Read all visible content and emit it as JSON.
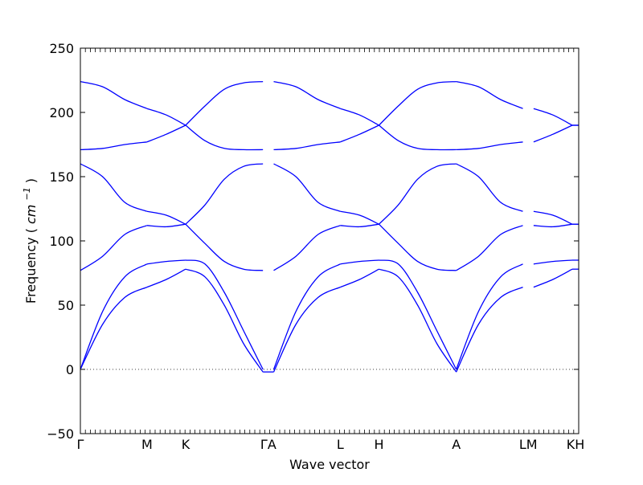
{
  "chart_data": {
    "type": "line",
    "title": "",
    "xlabel": "Wave vector",
    "ylabel": "Frequency",
    "ylabel_unit_base": "cm",
    "ylabel_unit_exponent": "−1",
    "ylim": [
      -50,
      250
    ],
    "yticks": [
      -50,
      0,
      50,
      100,
      150,
      200,
      250
    ],
    "ytick_labels": [
      "−50",
      "0",
      "50",
      "100",
      "150",
      "200",
      "250"
    ],
    "zero_line": "dotted",
    "grid": false,
    "legend": "none",
    "line_color": "#0000ff",
    "x_path_points": [
      {
        "label": "Γ",
        "x": 0.0
      },
      {
        "label": "M",
        "x": 0.62
      },
      {
        "label": "K",
        "x": 0.98
      },
      {
        "label": "Γ",
        "x": 1.7
      },
      {
        "label": "A",
        "x": 1.8
      },
      {
        "label": "L",
        "x": 2.42
      },
      {
        "label": "H",
        "x": 2.78
      },
      {
        "label": "A",
        "x": 3.5
      },
      {
        "label": "L",
        "x": 4.12
      },
      {
        "label": "M",
        "x": 4.22
      },
      {
        "label": "K",
        "x": 4.58
      },
      {
        "label": "H",
        "x": 4.64
      }
    ],
    "xlim": [
      0.0,
      4.64
    ],
    "x_tick_labels": [
      {
        "label": "Γ",
        "x": 0.0
      },
      {
        "label": "M",
        "x": 0.62
      },
      {
        "label": "K",
        "x": 0.98
      },
      {
        "label": "ΓA",
        "x": 1.75
      },
      {
        "label": "L",
        "x": 2.42
      },
      {
        "label": "H",
        "x": 2.78
      },
      {
        "label": "A",
        "x": 3.5
      },
      {
        "label": "LM",
        "x": 4.17
      },
      {
        "label": "KH",
        "x": 4.61
      }
    ],
    "segments": [
      {
        "name": "Γ-M",
        "x_start": 0.0,
        "x_end": 0.62,
        "bands": [
          [
            0,
            35,
            56,
            64
          ],
          [
            0,
            45,
            72,
            82
          ],
          [
            77,
            88,
            105,
            112
          ],
          [
            160,
            150,
            130,
            123
          ],
          [
            171,
            172,
            175,
            177
          ],
          [
            224,
            220,
            210,
            203
          ]
        ]
      },
      {
        "name": "M-K",
        "x_start": 0.62,
        "x_end": 0.98,
        "bands": [
          [
            64,
            70,
            78
          ],
          [
            82,
            84,
            85
          ],
          [
            112,
            111,
            113
          ],
          [
            123,
            120,
            113
          ],
          [
            177,
            183,
            190
          ],
          [
            203,
            198,
            190
          ]
        ]
      },
      {
        "name": "K-Γ",
        "x_start": 0.98,
        "x_end": 1.7,
        "bands": [
          [
            78,
            72,
            50,
            20,
            -2
          ],
          [
            85,
            82,
            60,
            30,
            0
          ],
          [
            113,
            98,
            84,
            78,
            77
          ],
          [
            113,
            128,
            148,
            158,
            160
          ],
          [
            190,
            178,
            172,
            171,
            171
          ],
          [
            190,
            205,
            218,
            223,
            224
          ]
        ]
      },
      {
        "name": "A-L",
        "x_start": 1.8,
        "x_end": 2.42,
        "bands": [
          [
            -2,
            35,
            56,
            64
          ],
          [
            0,
            45,
            72,
            82
          ],
          [
            77,
            88,
            105,
            112
          ],
          [
            160,
            150,
            130,
            123
          ],
          [
            171,
            172,
            175,
            177
          ],
          [
            224,
            220,
            210,
            203
          ]
        ]
      },
      {
        "name": "L-H",
        "x_start": 2.42,
        "x_end": 2.78,
        "bands": [
          [
            64,
            70,
            78
          ],
          [
            82,
            84,
            85
          ],
          [
            112,
            111,
            113
          ],
          [
            123,
            120,
            113
          ],
          [
            177,
            183,
            190
          ],
          [
            203,
            198,
            190
          ]
        ]
      },
      {
        "name": "H-A",
        "x_start": 2.78,
        "x_end": 3.5,
        "bands": [
          [
            78,
            72,
            50,
            20,
            -2
          ],
          [
            85,
            82,
            60,
            30,
            0
          ],
          [
            113,
            98,
            84,
            78,
            77
          ],
          [
            113,
            128,
            148,
            158,
            160
          ],
          [
            190,
            178,
            172,
            171,
            171
          ],
          [
            190,
            205,
            218,
            223,
            224
          ]
        ]
      },
      {
        "name": "A-L",
        "x_start": 3.5,
        "x_end": 4.12,
        "bands": [
          [
            -2,
            35,
            56,
            64
          ],
          [
            0,
            45,
            72,
            82
          ],
          [
            77,
            88,
            105,
            112
          ],
          [
            160,
            150,
            130,
            123
          ],
          [
            171,
            172,
            175,
            177
          ],
          [
            224,
            220,
            210,
            203
          ]
        ]
      },
      {
        "name": "M-K",
        "x_start": 4.22,
        "x_end": 4.58,
        "bands": [
          [
            64,
            70,
            78
          ],
          [
            82,
            84,
            85
          ],
          [
            112,
            111,
            113
          ],
          [
            123,
            120,
            113
          ],
          [
            177,
            183,
            190
          ],
          [
            203,
            198,
            190
          ]
        ]
      },
      {
        "name": "K-H",
        "x_start": 4.58,
        "x_end": 4.64,
        "bands": [
          [
            78,
            78
          ],
          [
            85,
            85
          ],
          [
            113,
            113
          ],
          [
            113,
            113
          ],
          [
            190,
            190
          ],
          [
            190,
            190
          ]
        ]
      }
    ]
  }
}
